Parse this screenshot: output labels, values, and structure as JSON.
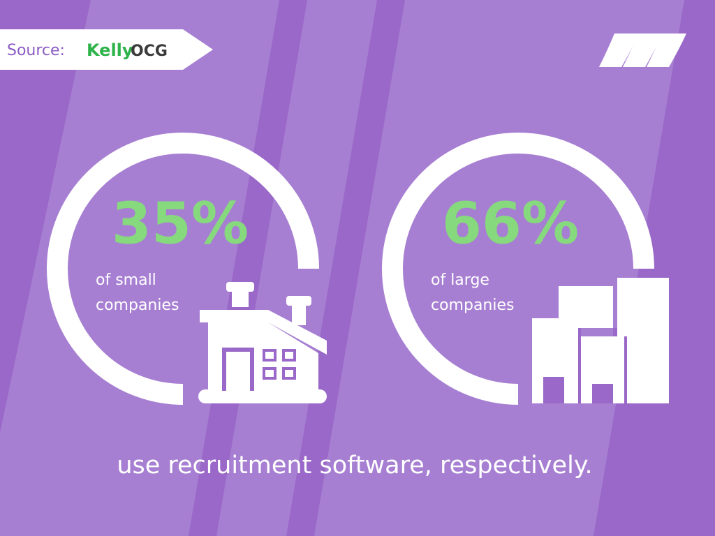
{
  "source": {
    "label": "Source:",
    "brand_first": "Kelly",
    "brand_second": "OCG"
  },
  "stats": [
    {
      "value": "35%",
      "line1": "of small",
      "line2": "companies"
    },
    {
      "value": "66%",
      "line1": "of large",
      "line2": "companies"
    }
  ],
  "footer": "use recruitment software, respectively."
}
